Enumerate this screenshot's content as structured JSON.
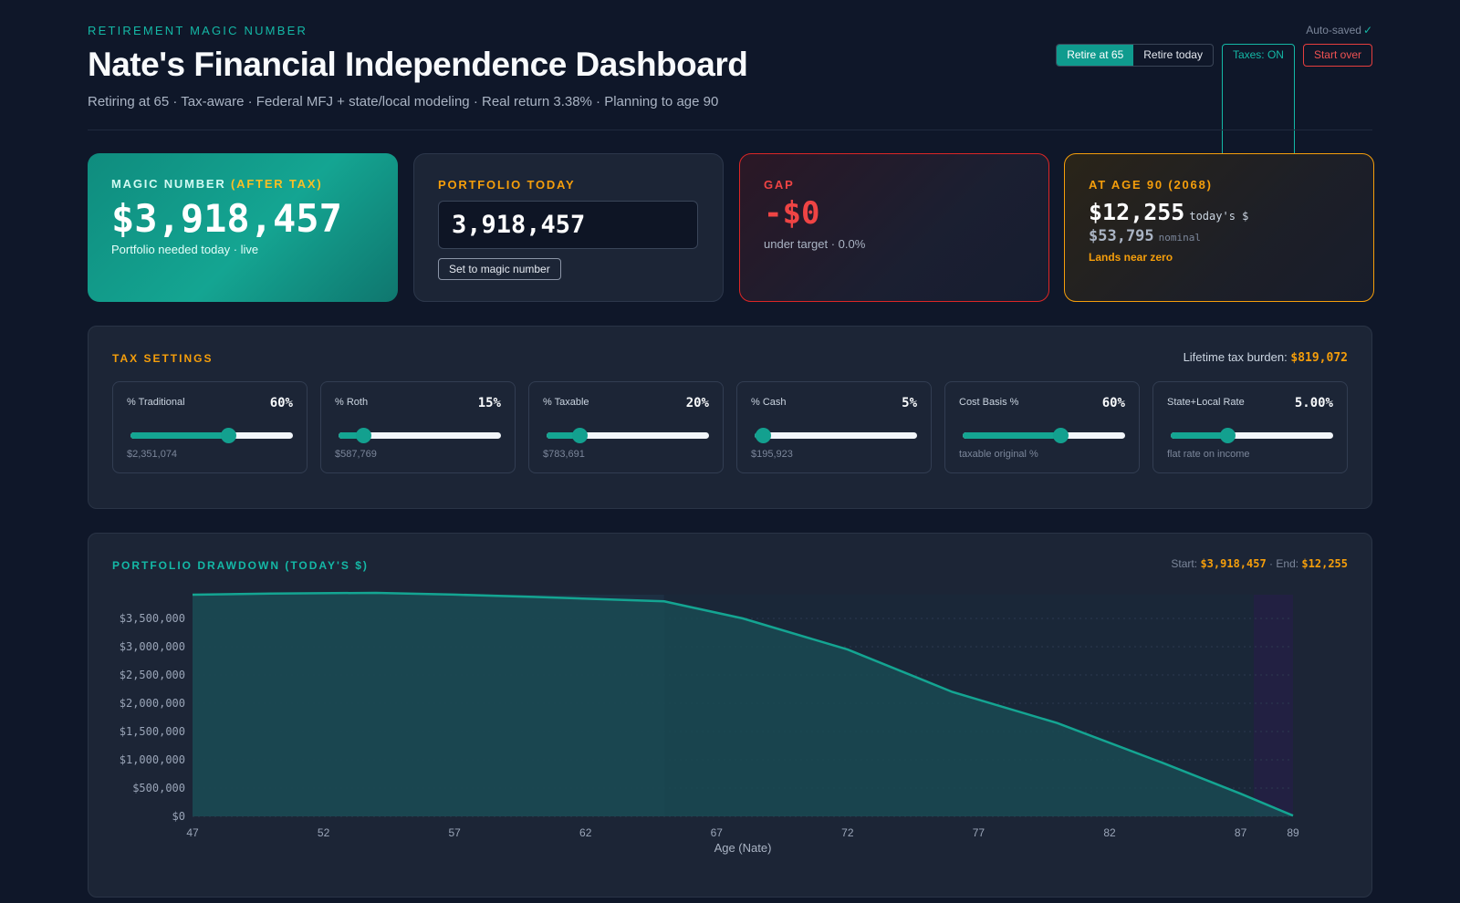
{
  "header": {
    "eyebrow": "RETIREMENT MAGIC NUMBER",
    "title": "Nate's Financial Independence Dashboard",
    "subtitle": "Retiring at 65 · Tax-aware · Federal MFJ + state/local modeling · Real return 3.38% · Planning to age 90",
    "autosaved": "Auto-saved",
    "autosaved_icon": "check-icon",
    "mode_options": [
      "Retire at 65",
      "Retire today"
    ],
    "mode_selected": "Retire at 65",
    "taxes_toggle": "Taxes: ON",
    "start_over": "Start over"
  },
  "cards": {
    "magic": {
      "label": "MAGIC NUMBER",
      "label_accent": "(AFTER TAX)",
      "value": "$3,918,457",
      "sub": "Portfolio needed today · live"
    },
    "portfolio": {
      "label": "PORTFOLIO TODAY",
      "input_value": "3,918,457",
      "button": "Set to magic number"
    },
    "gap": {
      "label": "GAP",
      "value": "-$0",
      "sub": "under target · 0.0%"
    },
    "age90": {
      "label": "AT AGE 90 (2068)",
      "value_today": "$12,255",
      "unit_today": "today's $",
      "value_nominal": "$53,795",
      "unit_nominal": "nominal",
      "note": "Lands near zero"
    }
  },
  "tax": {
    "title": "TAX SETTINGS",
    "burden_label": "Lifetime tax burden:",
    "burden_value": "$819,072",
    "sliders": [
      {
        "name": "% Traditional",
        "value": "60%",
        "fraction": 0.6,
        "hint": "$2,351,074"
      },
      {
        "name": "% Roth",
        "value": "15%",
        "fraction": 0.15,
        "hint": "$587,769"
      },
      {
        "name": "% Taxable",
        "value": "20%",
        "fraction": 0.2,
        "hint": "$783,691"
      },
      {
        "name": "% Cash",
        "value": "5%",
        "fraction": 0.05,
        "hint": "$195,923"
      },
      {
        "name": "Cost Basis %",
        "value": "60%",
        "fraction": 0.6,
        "hint": "taxable original %"
      },
      {
        "name": "State+Local Rate",
        "value": "5.00%",
        "fraction": 0.35,
        "hint": "flat rate on income"
      }
    ]
  },
  "drawdown": {
    "title": "PORTFOLIO DRAWDOWN (TODAY'S $)",
    "start_label": "Start:",
    "start_value": "$3,918,457",
    "end_label": "End:",
    "end_value": "$12,255",
    "sep": "·"
  },
  "chart_data": {
    "type": "area",
    "xlabel": "Age (Nate)",
    "x_ticks": [
      47,
      52,
      57,
      62,
      67,
      72,
      77,
      82,
      87,
      89
    ],
    "y_ticks": [
      0,
      500000,
      1000000,
      1500000,
      2000000,
      2500000,
      3000000,
      3500000
    ],
    "y_tick_labels": [
      "$0",
      "$500,000",
      "$1,000,000",
      "$1,500,000",
      "$2,000,000",
      "$2,500,000",
      "$3,000,000",
      "$3,500,000"
    ],
    "xlim": [
      47,
      89
    ],
    "ylim": [
      0,
      3918457
    ],
    "retire_age": 65,
    "x": [
      47,
      50,
      54,
      57,
      60,
      65,
      68,
      72,
      76,
      80,
      84,
      87,
      89
    ],
    "y": [
      3918457,
      3940000,
      3950000,
      3920000,
      3880000,
      3800000,
      3500000,
      2950000,
      2200000,
      1650000,
      950000,
      400000,
      12255
    ],
    "colors": {
      "line": "#14a592",
      "fill": "#1a4a52",
      "accent": "#f59e0b"
    }
  }
}
